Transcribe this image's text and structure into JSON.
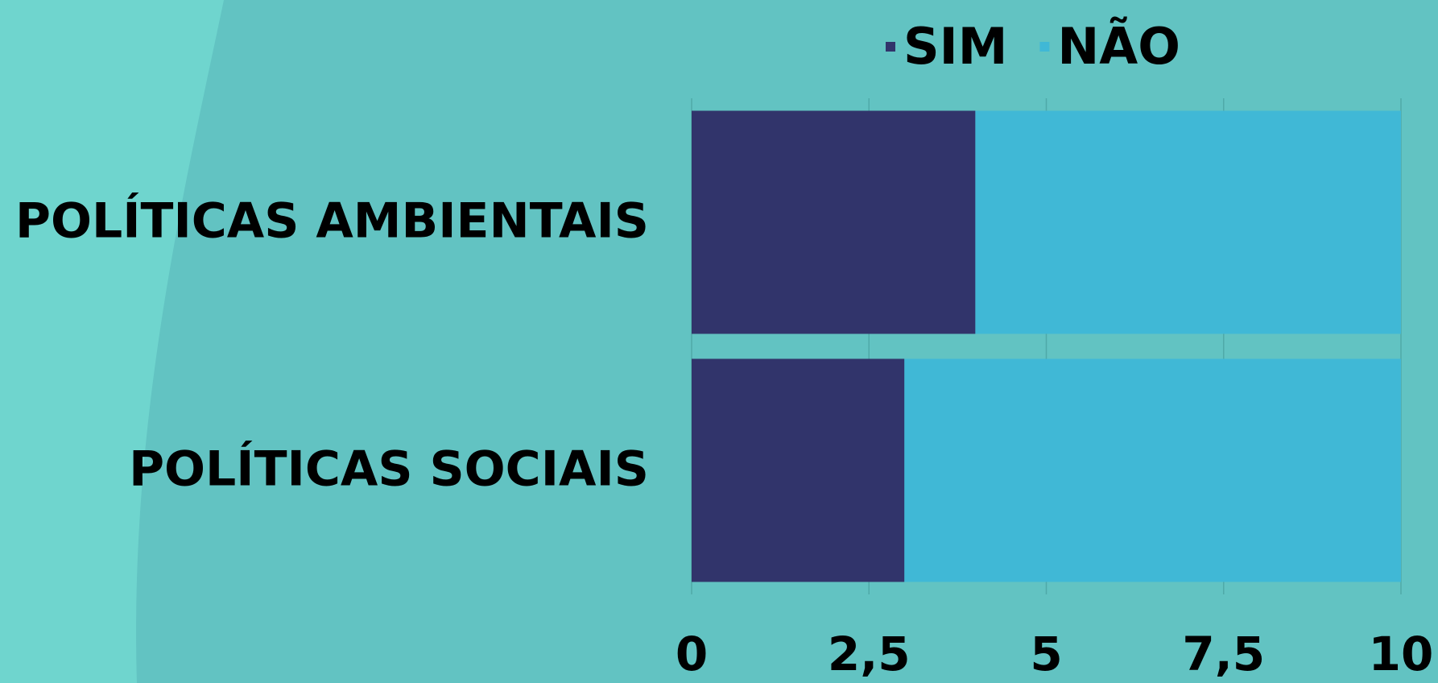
{
  "chart_data": {
    "type": "stacked-bar-horizontal",
    "categories": [
      "POLÍTICAS AMBIENTAIS",
      "POLÍTICAS SOCIAIS"
    ],
    "series": [
      {
        "name": "SIM",
        "color": "#31346b",
        "values": [
          4,
          3
        ]
      },
      {
        "name": "NÃO",
        "color": "#40b8d6",
        "values": [
          6,
          7
        ]
      }
    ],
    "xlim": [
      0,
      10
    ],
    "xticks": [
      0,
      {
        "value": 2.5,
        "label": "2,5"
      },
      5,
      {
        "value": 7.5,
        "label": "7,5"
      },
      10
    ],
    "grid": true,
    "legend": "top"
  }
}
